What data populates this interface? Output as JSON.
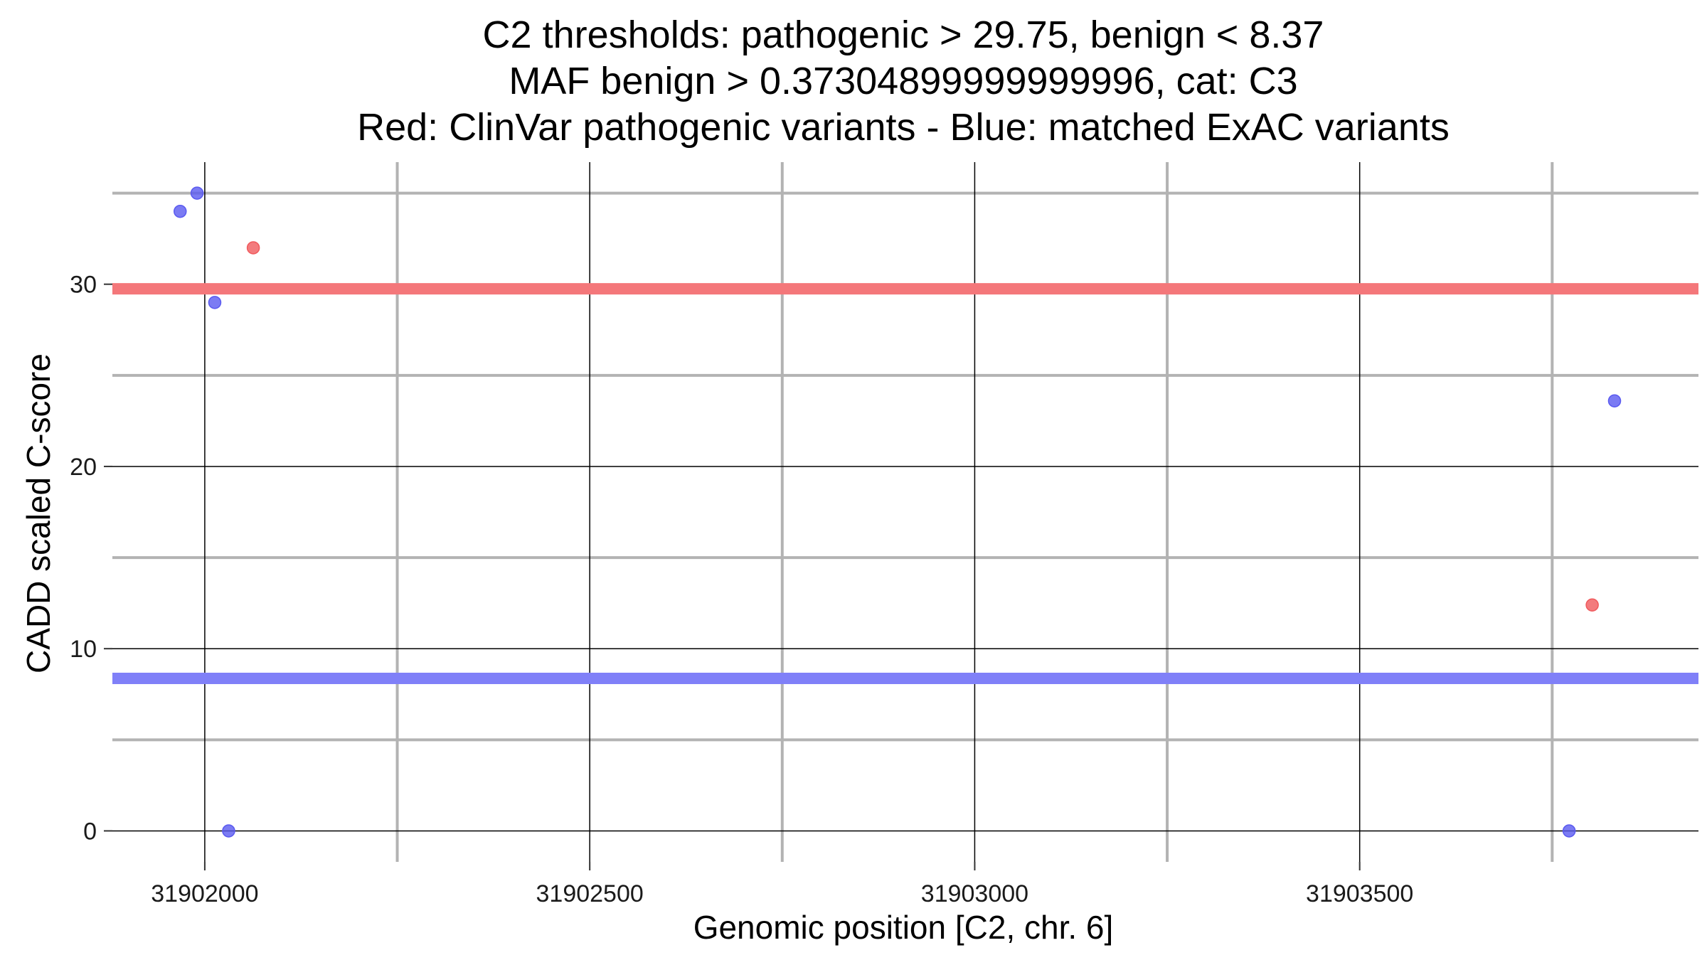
{
  "chart_data": {
    "type": "scatter",
    "title_lines": [
      "C2 thresholds: pathogenic > 29.75, benign < 8.37",
      "MAF benign > 0.37304899999999996, cat: C3",
      "Red: ClinVar pathogenic variants - Blue: matched ExAC variants"
    ],
    "xlabel": "Genomic position [C2, chr. 6]",
    "ylabel": "CADD scaled C-score",
    "xlim": [
      31901880,
      31903940
    ],
    "ylim": [
      -1.7,
      36.7
    ],
    "x_ticks": [
      31902000,
      31902500,
      31903000,
      31903500
    ],
    "x_tick_labels": [
      "31902000",
      "31902500",
      "31903000",
      "31903500"
    ],
    "x_minor_ticks": [
      31902250,
      31902750,
      31903250,
      31903750
    ],
    "y_ticks": [
      0,
      10,
      20,
      30
    ],
    "y_tick_labels": [
      "0",
      "10",
      "20",
      "30"
    ],
    "y_minor_ticks": [
      5,
      15,
      25,
      35
    ],
    "thresholds": [
      {
        "name": "pathogenic",
        "value": 29.75,
        "color": "#f4777a"
      },
      {
        "name": "benign",
        "value": 8.37,
        "color": "#8080f8"
      }
    ],
    "series": [
      {
        "name": "ClinVar pathogenic variants",
        "color": "#f05a5d",
        "points": [
          {
            "x": 31902063,
            "y": 32.0
          },
          {
            "x": 31903802,
            "y": 12.4
          }
        ]
      },
      {
        "name": "matched ExAC variants",
        "color": "#5a5af0",
        "points": [
          {
            "x": 31901968,
            "y": 34.0
          },
          {
            "x": 31901990,
            "y": 35.0
          },
          {
            "x": 31902013,
            "y": 29.0
          },
          {
            "x": 31902031,
            "y": 0.0
          },
          {
            "x": 31903831,
            "y": 23.6
          },
          {
            "x": 31903772,
            "y": 0.0
          }
        ]
      }
    ]
  }
}
